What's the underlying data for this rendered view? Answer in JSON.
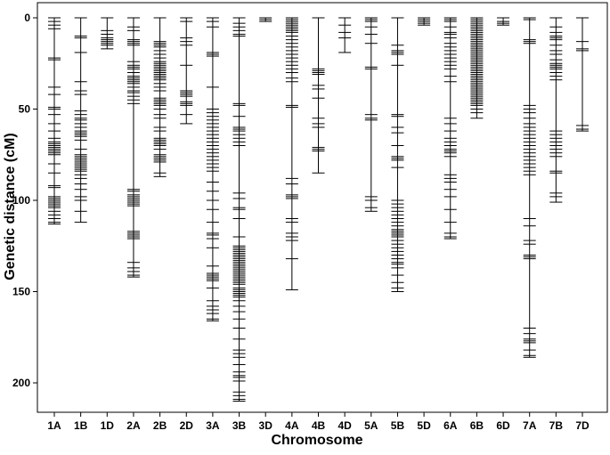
{
  "chart_data": {
    "type": "genetic-linkage-map",
    "xlabel": "Chromosome",
    "ylabel": "Genetic distance (cM)",
    "ylim": [
      0,
      215
    ],
    "y_axis_inverted": true,
    "y_ticks": [
      0,
      50,
      100,
      150,
      200
    ],
    "grid": false,
    "legend": "none",
    "colors": {
      "line": "#000000",
      "marker": "#000000",
      "frame": "#000000"
    },
    "categories": [
      "1A",
      "1B",
      "1D",
      "2A",
      "2B",
      "2D",
      "3A",
      "3B",
      "3D",
      "4A",
      "4B",
      "4D",
      "5A",
      "5B",
      "5D",
      "6A",
      "6B",
      "6D",
      "7A",
      "7B",
      "7D"
    ],
    "chromosomes": [
      {
        "name": "1A",
        "length": 113,
        "markers": [
          0,
          2,
          4,
          6,
          22,
          23,
          38,
          42,
          49,
          50,
          53,
          58,
          62,
          66,
          68,
          69,
          70,
          71,
          72,
          73,
          74,
          75,
          80,
          85,
          92,
          93,
          98,
          99,
          100,
          101,
          102,
          103,
          104,
          106,
          108,
          110,
          112,
          113
        ]
      },
      {
        "name": "1B",
        "length": 112,
        "markers": [
          0,
          10,
          11,
          19,
          35,
          40,
          42,
          51,
          53,
          55,
          56,
          58,
          60,
          62,
          63,
          64,
          65,
          67,
          72,
          75,
          76,
          77,
          78,
          79,
          80,
          81,
          82,
          83,
          84,
          86,
          88,
          91,
          94,
          98,
          100,
          106,
          112
        ]
      },
      {
        "name": "1D",
        "length": 17,
        "markers": [
          0,
          7,
          9,
          11,
          12,
          13,
          14,
          15,
          17
        ]
      },
      {
        "name": "2A",
        "length": 142,
        "markers": [
          0,
          5,
          7,
          12,
          13,
          14,
          15,
          24,
          26,
          27,
          28,
          30,
          32,
          33,
          34,
          35,
          36,
          38,
          40,
          41,
          43,
          45,
          47,
          94,
          95,
          97,
          98,
          99,
          100,
          101,
          102,
          103,
          117,
          118,
          119,
          120,
          121,
          134,
          137,
          139,
          141,
          142
        ]
      },
      {
        "name": "2B",
        "length": 87,
        "markers": [
          0,
          13,
          14,
          15,
          16,
          18,
          20,
          22,
          24,
          25,
          26,
          27,
          28,
          29,
          30,
          31,
          32,
          33,
          34,
          36,
          38,
          40,
          44,
          45,
          46,
          47,
          48,
          50,
          53,
          55,
          60,
          62,
          66,
          67,
          68,
          69,
          70,
          72,
          75,
          76,
          77,
          78,
          79,
          85,
          87
        ]
      },
      {
        "name": "2D",
        "length": 58,
        "markers": [
          0,
          2,
          11,
          13,
          15,
          26,
          40,
          41,
          42,
          43,
          46,
          47,
          48,
          53,
          58
        ]
      },
      {
        "name": "3A",
        "length": 166,
        "markers": [
          0,
          2,
          5,
          19,
          20,
          21,
          38,
          50,
          52,
          54,
          56,
          58,
          60,
          62,
          64,
          66,
          68,
          70,
          72,
          74,
          76,
          78,
          80,
          82,
          84,
          90,
          95,
          100,
          105,
          112,
          118,
          119,
          121,
          126,
          136,
          140,
          141,
          142,
          143,
          144,
          148,
          155,
          158,
          160,
          162,
          165,
          166
        ]
      },
      {
        "name": "3B",
        "length": 210,
        "markers": [
          0,
          3,
          5,
          7,
          9,
          10,
          47,
          48,
          54,
          60,
          61,
          62,
          64,
          66,
          68,
          70,
          96,
          99,
          104,
          105,
          110,
          120,
          125,
          126,
          127,
          128,
          129,
          130,
          131,
          132,
          133,
          134,
          135,
          136,
          137,
          138,
          139,
          140,
          141,
          142,
          143,
          144,
          145,
          146,
          148,
          149,
          150,
          151,
          152,
          153,
          155,
          158,
          161,
          165,
          170,
          176,
          182,
          184,
          186,
          190,
          194,
          196,
          197,
          199,
          205,
          207,
          209,
          210
        ]
      },
      {
        "name": "3D",
        "length": 2,
        "markers": [
          0,
          1,
          2
        ]
      },
      {
        "name": "4A",
        "length": 149,
        "markers": [
          0,
          1,
          2,
          3,
          4,
          5,
          6,
          7,
          8,
          10,
          12,
          14,
          16,
          18,
          20,
          22,
          24,
          26,
          28,
          30,
          33,
          35,
          48,
          49,
          88,
          91,
          97,
          98,
          99,
          110,
          112,
          118,
          120,
          122,
          132,
          149
        ]
      },
      {
        "name": "4B",
        "length": 85,
        "markers": [
          0,
          28,
          29,
          30,
          31,
          37,
          39,
          44,
          55,
          58,
          60,
          71,
          72,
          73,
          85
        ]
      },
      {
        "name": "4D",
        "length": 19,
        "markers": [
          0,
          4,
          8,
          11,
          19
        ]
      },
      {
        "name": "5A",
        "length": 106,
        "markers": [
          0,
          1,
          2,
          5,
          9,
          14,
          27,
          28,
          53,
          55,
          56,
          98,
          100,
          104,
          106
        ]
      },
      {
        "name": "5B",
        "length": 150,
        "markers": [
          0,
          15,
          18,
          19,
          20,
          26,
          53,
          54,
          60,
          63,
          70,
          76,
          77,
          78,
          82,
          100,
          102,
          104,
          106,
          108,
          110,
          112,
          114,
          116,
          117,
          118,
          119,
          120,
          122,
          124,
          126,
          128,
          130,
          132,
          134,
          135,
          137,
          141,
          145,
          148,
          150
        ]
      },
      {
        "name": "5D",
        "length": 4,
        "markers": [
          0,
          1,
          2,
          3,
          4
        ]
      },
      {
        "name": "6A",
        "length": 121,
        "markers": [
          0,
          1,
          2,
          5,
          8,
          9,
          11,
          14,
          16,
          18,
          20,
          22,
          24,
          26,
          28,
          32,
          35,
          55,
          58,
          62,
          66,
          68,
          70,
          72,
          73,
          74,
          76,
          86,
          88,
          90,
          94,
          98,
          105,
          112,
          118,
          120,
          121
        ]
      },
      {
        "name": "6B",
        "length": 55,
        "markers": [
          0,
          1,
          2,
          3,
          4,
          5,
          6,
          7,
          8,
          9,
          10,
          11,
          12,
          13,
          14,
          15,
          16,
          17,
          18,
          19,
          20,
          21,
          22,
          23,
          24,
          25,
          26,
          27,
          28,
          29,
          30,
          31,
          32,
          33,
          34,
          35,
          36,
          37,
          38,
          39,
          40,
          41,
          42,
          43,
          44,
          45,
          46,
          47,
          48,
          50,
          52,
          55
        ]
      },
      {
        "name": "6D",
        "length": 4,
        "markers": [
          0,
          2,
          3,
          4
        ]
      },
      {
        "name": "7A",
        "length": 186,
        "markers": [
          0,
          1,
          12,
          13,
          14,
          48,
          50,
          52,
          55,
          58,
          60,
          62,
          64,
          66,
          68,
          70,
          72,
          74,
          76,
          78,
          80,
          82,
          84,
          86,
          110,
          114,
          122,
          124,
          130,
          131,
          132,
          170,
          173,
          176,
          177,
          178,
          182,
          185,
          186
        ]
      },
      {
        "name": "7B",
        "length": 101,
        "markers": [
          0,
          5,
          8,
          10,
          11,
          12,
          15,
          18,
          20,
          23,
          25,
          26,
          27,
          28,
          30,
          32,
          34,
          62,
          64,
          66,
          68,
          70,
          72,
          74,
          76,
          84,
          85,
          96,
          98,
          101
        ]
      },
      {
        "name": "7D",
        "length": 62,
        "markers": [
          0,
          13,
          17,
          18,
          59,
          61,
          62
        ]
      }
    ]
  }
}
